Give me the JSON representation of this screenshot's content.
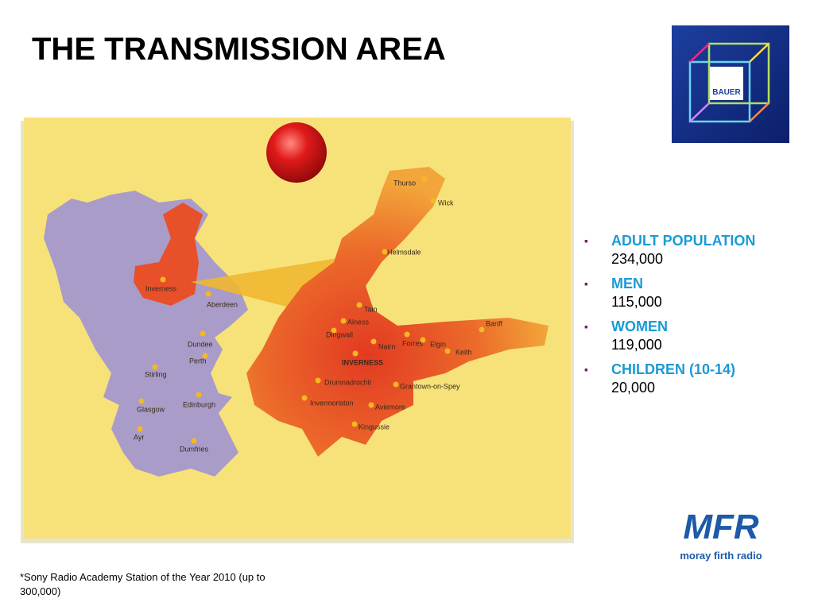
{
  "title": "THE TRANSMISSION AREA",
  "stats": [
    {
      "label": "ADULT POPULATION",
      "value": "234,000"
    },
    {
      "label": "MEN",
      "value": "115,000"
    },
    {
      "label": "WOMEN",
      "value": "119,000"
    },
    {
      "label": "CHILDREN  (10-14)",
      "value": "20,000"
    }
  ],
  "footnote": "*Sony Radio Academy Station of the Year 2010 (up to 300,000)",
  "map": {
    "scotland_labels": [
      "Inverness",
      "Aberdeen",
      "Dundee",
      "Perth",
      "Stirling",
      "Glasgow",
      "Edinburgh",
      "Ayr",
      "Dumfries"
    ],
    "area_labels": [
      "Thurso",
      "Wick",
      "Helmsdale",
      "Tain",
      "Alness",
      "Dingwall",
      "Nairn",
      "Forres",
      "Elgin",
      "Banff",
      "Keith",
      "INVERNESS",
      "Drumnadrochit",
      "Grantown-on-Spey",
      "Invermoriston",
      "Aviemore",
      "Kingussie"
    ]
  },
  "logos": {
    "bauer": "BAUER",
    "mfr": "MFR",
    "mfr_name": "moray firth radio"
  }
}
